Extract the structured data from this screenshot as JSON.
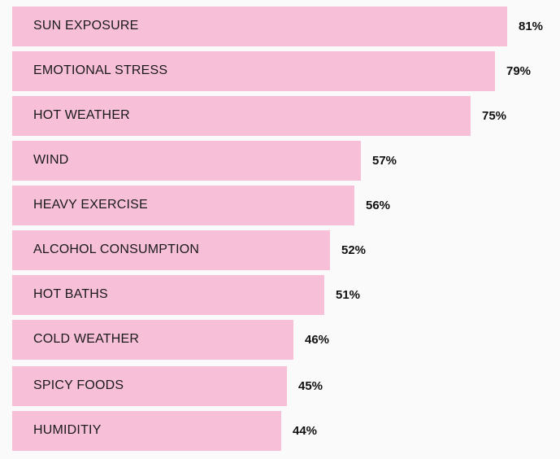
{
  "chart_data": {
    "type": "bar",
    "orientation": "horizontal",
    "categories": [
      "SUN EXPOSURE",
      "EMOTIONAL STRESS",
      "HOT WEATHER",
      "WIND",
      "HEAVY EXERCISE",
      "ALCOHOL CONSUMPTION",
      "HOT BATHS",
      "COLD WEATHER",
      "SPICY FOODS",
      "HUMIDITIY"
    ],
    "values": [
      81,
      79,
      75,
      57,
      56,
      52,
      51,
      46,
      45,
      44
    ],
    "value_labels": [
      "81%",
      "79%",
      "75%",
      "57%",
      "56%",
      "52%",
      "51%",
      "46%",
      "45%",
      "44%"
    ],
    "unit": "%",
    "xlim": [
      0,
      100
    ],
    "grid": false,
    "legend": "none",
    "bar_color": "#f8c0d8"
  }
}
